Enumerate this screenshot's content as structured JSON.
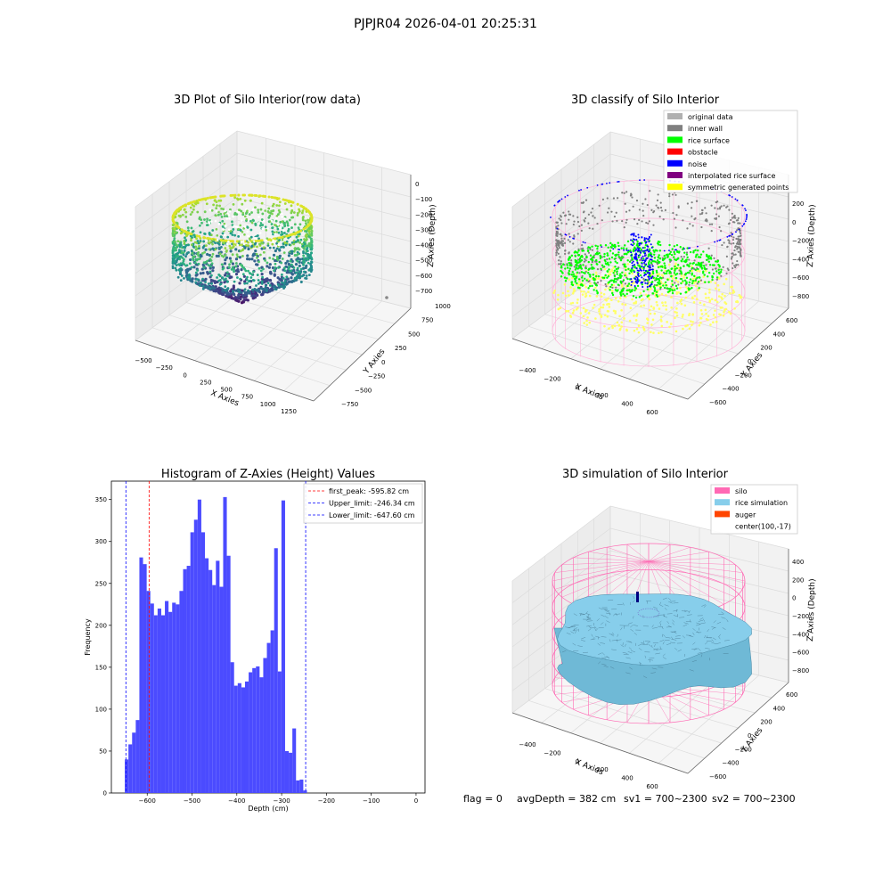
{
  "suptitle": "PJPJR04 2026-04-01 20:25:31",
  "footer": {
    "flag": "flag = 0",
    "avg_depth": "avgDepth = 382 cm",
    "sv1": "sv1 = 700~2300",
    "sv2": "sv2 = 700~2300"
  },
  "colors": {
    "hist_bar": "#4b4bff",
    "first_peak_line": "#ff0000",
    "limit_line": "#0000ff",
    "silo": "#ff69b4",
    "rice_sim": "#87ceeb",
    "auger": "#ff4500",
    "original": "#b0b0b0",
    "inner_wall": "#808080",
    "rice_surface": "#00ff00",
    "obstacle": "#ff0000",
    "noise": "#0000ff",
    "interp": "#800080",
    "symmetric": "#ffff00"
  },
  "chart_data": [
    {
      "id": "raw",
      "type": "scatter",
      "projection": "3d",
      "title": "3D Plot of Silo Interior(row data)",
      "xlabel": "X Axies",
      "ylabel": "Y Axies",
      "zlabel": "Z Axies (Depth)",
      "x_ticks": [
        "−500",
        "−250",
        "0",
        "250",
        "500",
        "750",
        "1000",
        "1250"
      ],
      "y_ticks": [
        "−750",
        "−500",
        "−250",
        "0",
        "250",
        "500",
        "750",
        "1000"
      ],
      "z_ticks": [
        "0",
        "−100",
        "−200",
        "−300",
        "−400",
        "−500",
        "−600",
        "−700"
      ],
      "colormap": "viridis"
    },
    {
      "id": "classify",
      "type": "scatter",
      "projection": "3d",
      "title": "3D classify of Silo Interior",
      "xlabel": "X Axies",
      "ylabel": "Y Axies",
      "zlabel": "Z Axies (Depth)",
      "x_ticks": [
        "−400",
        "−200",
        "0",
        "200",
        "400",
        "600"
      ],
      "y_ticks": [
        "−600",
        "−400",
        "−200",
        "0",
        "200",
        "400",
        "600"
      ],
      "z_ticks": [
        "200",
        "0",
        "−200",
        "−400",
        "−600",
        "−800"
      ],
      "legend_position": "top-right",
      "legend": [
        {
          "label": "original data",
          "color": "#b0b0b0"
        },
        {
          "label": "inner wall",
          "color": "#808080"
        },
        {
          "label": "rice surface",
          "color": "#00ff00"
        },
        {
          "label": "obstacle",
          "color": "#ff0000"
        },
        {
          "label": "noise",
          "color": "#0000ff"
        },
        {
          "label": "interpolated rice surface",
          "color": "#800080"
        },
        {
          "label": "symmetric generated points",
          "color": "#ffff00"
        }
      ]
    },
    {
      "id": "hist",
      "type": "bar",
      "title": "Histogram of Z-Axies (Height) Values",
      "xlabel": "Depth (cm)",
      "ylabel": "Frequency",
      "xlim": [
        -680,
        20
      ],
      "ylim": [
        0,
        372
      ],
      "x_ticks": [
        -600,
        -500,
        -400,
        -300,
        -200,
        -100,
        0
      ],
      "y_ticks": [
        0,
        50,
        100,
        150,
        200,
        250,
        300,
        350
      ],
      "bin_start": -650,
      "bin_width": 8.13,
      "counts": [
        40,
        58,
        72,
        87,
        281,
        273,
        241,
        226,
        212,
        220,
        212,
        229,
        216,
        227,
        225,
        241,
        267,
        271,
        311,
        326,
        350,
        311,
        280,
        266,
        248,
        277,
        246,
        353,
        283,
        156,
        128,
        131,
        126,
        133,
        144,
        149,
        151,
        138,
        161,
        179,
        194,
        292,
        145,
        349,
        50,
        48,
        77,
        15,
        16,
        3
      ],
      "vlines": [
        {
          "label": "first_peak: -595.82 cm",
          "x": -595.82,
          "style": "red"
        },
        {
          "label": "Upper_limit: -246.34 cm",
          "x": -246.34,
          "style": "blue"
        },
        {
          "label": "Lower_limit: -647.60 cm",
          "x": -647.6,
          "style": "blue"
        }
      ],
      "legend_position": "top-right"
    },
    {
      "id": "sim",
      "type": "surface",
      "projection": "3d",
      "title": "3D simulation of Silo Interior",
      "xlabel": "X Axies",
      "ylabel": "Y Axies",
      "zlabel": "Z Axies (Depth)",
      "x_ticks": [
        "−400",
        "−200",
        "0",
        "200",
        "400",
        "600"
      ],
      "y_ticks": [
        "−600",
        "−400",
        "−200",
        "0",
        "200",
        "400",
        "600"
      ],
      "z_ticks": [
        "400",
        "200",
        "0",
        "−200",
        "−400",
        "−600",
        "−800"
      ],
      "legend_position": "top-right",
      "legend": [
        {
          "label": "silo",
          "color": "#ff69b4"
        },
        {
          "label": "rice simulation",
          "color": "#87ceeb"
        },
        {
          "label": "auger",
          "color": "#ff4500"
        },
        {
          "label": "center(100,-17)",
          "color": ""
        }
      ]
    }
  ]
}
